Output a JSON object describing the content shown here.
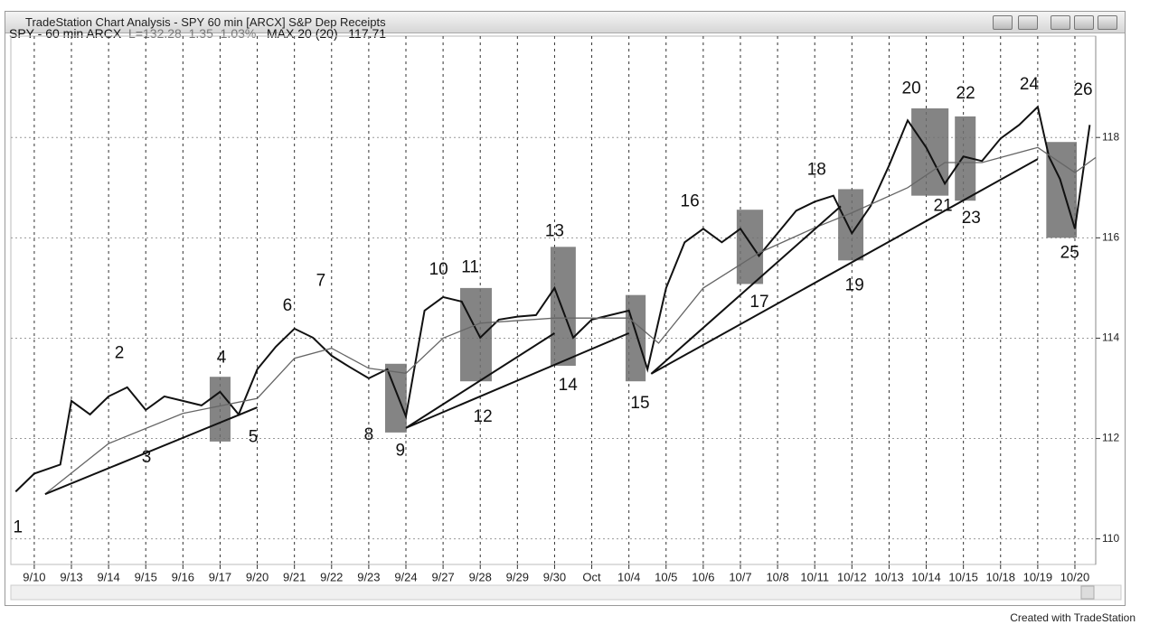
{
  "window": {
    "title": "TradeStation Chart Analysis - SPY 60 min [ARCX] S&P Dep Receipts",
    "footer": "Created with TradeStation"
  },
  "header": {
    "symbol": "SPY - 60 min ARCX",
    "last": "L=132.28",
    "change": "1.35",
    "percent": "1.03%",
    "indicator": "MAX 20 (20)",
    "indicator_value": "117.71"
  },
  "chart_data": {
    "type": "line",
    "xlim": [
      -0.63,
      28.56
    ],
    "ylim": [
      109.49,
      120.02
    ],
    "xticks": [
      {
        "value": 0,
        "label": "9/10"
      },
      {
        "value": 1,
        "label": "9/13"
      },
      {
        "value": 2,
        "label": "9/14"
      },
      {
        "value": 3,
        "label": "9/15"
      },
      {
        "value": 4,
        "label": "9/16"
      },
      {
        "value": 5,
        "label": "9/17"
      },
      {
        "value": 6,
        "label": "9/20"
      },
      {
        "value": 7,
        "label": "9/21"
      },
      {
        "value": 8,
        "label": "9/22"
      },
      {
        "value": 9,
        "label": "9/23"
      },
      {
        "value": 10,
        "label": "9/24"
      },
      {
        "value": 11,
        "label": "9/27"
      },
      {
        "value": 12,
        "label": "9/28"
      },
      {
        "value": 13,
        "label": "9/29"
      },
      {
        "value": 14,
        "label": "9/30"
      },
      {
        "value": 15,
        "label": "Oct"
      },
      {
        "value": 16,
        "label": "10/4"
      },
      {
        "value": 17,
        "label": "10/5"
      },
      {
        "value": 18,
        "label": "10/6"
      },
      {
        "value": 19,
        "label": "10/7"
      },
      {
        "value": 20,
        "label": "10/8"
      },
      {
        "value": 21,
        "label": "10/11"
      },
      {
        "value": 22,
        "label": "10/12"
      },
      {
        "value": 23,
        "label": "10/13"
      },
      {
        "value": 24,
        "label": "10/14"
      },
      {
        "value": 25,
        "label": "10/15"
      },
      {
        "value": 26,
        "label": "10/18"
      },
      {
        "value": 27,
        "label": "10/19"
      },
      {
        "value": 28,
        "label": "10/20"
      }
    ],
    "yticks": [
      110,
      112,
      114,
      116,
      118
    ],
    "grid": true,
    "series": [
      {
        "color": "#111111",
        "x": [
          -0.5,
          0,
          0.7,
          1,
          1.5,
          2,
          2.5,
          3,
          3.5,
          4,
          4.5,
          5,
          5.5,
          6,
          6.5,
          7,
          7.5,
          8,
          8.5,
          9,
          9.5,
          10,
          10.5,
          11,
          11.5,
          12,
          12.5,
          13,
          13.5,
          14,
          14.5,
          15,
          15.5,
          16,
          16.5,
          17,
          17.5,
          18,
          18.5,
          19,
          19.5,
          20,
          20.5,
          21,
          21.5,
          22,
          22.5,
          23,
          23.5,
          24,
          24.5,
          25,
          25.5,
          26,
          26.5,
          27,
          27.3,
          27.6,
          28,
          28.4
        ],
        "values": [
          110.94,
          111.3,
          111.48,
          112.75,
          112.48,
          112.84,
          113.02,
          112.57,
          112.84,
          112.75,
          112.66,
          112.93,
          112.48,
          113.38,
          113.83,
          114.19,
          114.01,
          113.65,
          113.42,
          113.2,
          113.38,
          112.44,
          114.55,
          114.82,
          114.73,
          114.01,
          114.37,
          114.43,
          114.46,
          115.0,
          114.01,
          114.37,
          114.46,
          114.55,
          113.38,
          115.0,
          115.91,
          116.18,
          115.91,
          116.18,
          115.64,
          116.09,
          116.54,
          116.72,
          116.84,
          116.09,
          116.63,
          117.44,
          118.34,
          117.8,
          117.08,
          117.62,
          117.53,
          117.98,
          118.25,
          118.61,
          117.62,
          117.17,
          116.18,
          118.25
        ]
      },
      {
        "color": "#666666",
        "x": [
          0.3,
          2,
          4,
          6,
          7,
          8,
          9,
          10,
          11,
          12,
          14,
          16,
          16.8,
          18,
          19.5,
          21,
          22,
          23.5,
          24.5,
          25.5,
          27,
          28,
          28.56
        ],
        "values": [
          110.9,
          111.9,
          112.5,
          112.8,
          113.6,
          113.8,
          113.4,
          113.3,
          114.0,
          114.3,
          114.4,
          114.4,
          113.9,
          115.0,
          115.7,
          116.2,
          116.5,
          117.0,
          117.5,
          117.5,
          117.8,
          117.3,
          117.6
        ]
      }
    ],
    "trendlines": [
      {
        "x": [
          0.29,
          6.0
        ],
        "y": [
          110.89,
          112.62
        ]
      },
      {
        "x": [
          10,
          14
        ],
        "y": [
          112.21,
          114.1
        ]
      },
      {
        "x": [
          10,
          16
        ],
        "y": [
          112.21,
          114.1
        ]
      },
      {
        "x": [
          16.6,
          21.7
        ],
        "y": [
          113.29,
          116.63
        ]
      },
      {
        "x": [
          16.6,
          27.0
        ],
        "y": [
          113.29,
          117.57
        ]
      }
    ],
    "boxes": [
      {
        "x0": 4.72,
        "x1": 5.28,
        "y0": 111.94,
        "y1": 113.23
      },
      {
        "x0": 9.44,
        "x1": 10.02,
        "y0": 112.12,
        "y1": 113.49
      },
      {
        "x0": 11.46,
        "x1": 12.31,
        "y0": 113.14,
        "y1": 115.0
      },
      {
        "x0": 13.89,
        "x1": 14.57,
        "y0": 113.45,
        "y1": 115.82
      },
      {
        "x0": 15.91,
        "x1": 16.45,
        "y0": 113.14,
        "y1": 114.86
      },
      {
        "x0": 18.9,
        "x1": 19.61,
        "y0": 115.08,
        "y1": 116.56
      },
      {
        "x0": 21.63,
        "x1": 22.31,
        "y0": 115.55,
        "y1": 116.97
      },
      {
        "x0": 23.6,
        "x1": 24.6,
        "y0": 116.84,
        "y1": 118.58
      },
      {
        "x0": 24.77,
        "x1": 25.33,
        "y0": 116.74,
        "y1": 118.42
      },
      {
        "x0": 27.23,
        "x1": 28.05,
        "y0": 116.0,
        "y1": 117.91
      }
    ],
    "annotations": [
      {
        "text": "1",
        "x": -0.44,
        "y": 110.22
      },
      {
        "text": "2",
        "x": 2.29,
        "y": 113.69
      },
      {
        "text": "3",
        "x": 3.02,
        "y": 111.61
      },
      {
        "text": "4",
        "x": 5.04,
        "y": 113.6
      },
      {
        "text": "5",
        "x": 5.89,
        "y": 112.02
      },
      {
        "text": "6",
        "x": 6.81,
        "y": 114.64
      },
      {
        "text": "7",
        "x": 7.71,
        "y": 115.13
      },
      {
        "text": "8",
        "x": 9.0,
        "y": 112.06
      },
      {
        "text": "9",
        "x": 9.85,
        "y": 111.75
      },
      {
        "text": "10",
        "x": 10.88,
        "y": 115.36
      },
      {
        "text": "11",
        "x": 11.73,
        "y": 115.4
      },
      {
        "text": "12",
        "x": 12.07,
        "y": 112.42
      },
      {
        "text": "13",
        "x": 14.0,
        "y": 116.12
      },
      {
        "text": "14",
        "x": 14.36,
        "y": 113.05
      },
      {
        "text": "15",
        "x": 16.3,
        "y": 112.69
      },
      {
        "text": "16",
        "x": 17.64,
        "y": 116.72
      },
      {
        "text": "17",
        "x": 19.51,
        "y": 114.71
      },
      {
        "text": "18",
        "x": 21.05,
        "y": 117.35
      },
      {
        "text": "19",
        "x": 22.07,
        "y": 115.04
      },
      {
        "text": "20",
        "x": 23.6,
        "y": 118.97
      },
      {
        "text": "21",
        "x": 24.45,
        "y": 116.63
      },
      {
        "text": "22",
        "x": 25.06,
        "y": 118.87
      },
      {
        "text": "23",
        "x": 25.21,
        "y": 116.38
      },
      {
        "text": "24",
        "x": 26.77,
        "y": 119.05
      },
      {
        "text": "25",
        "x": 27.86,
        "y": 115.69
      },
      {
        "text": "26",
        "x": 28.22,
        "y": 118.94
      }
    ]
  }
}
